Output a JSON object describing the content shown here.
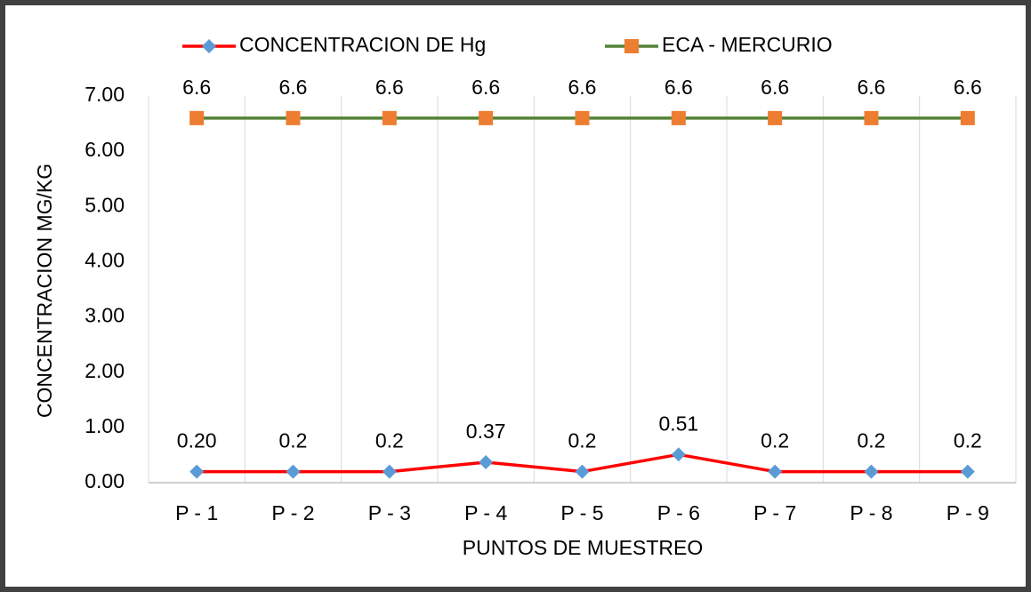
{
  "chart_data": {
    "type": "line",
    "x_label": "PUNTOS DE MUESTREO",
    "y_label": "CONCENTRACION MG/KG",
    "categories": [
      "P - 1",
      "P - 2",
      "P - 3",
      "P - 4",
      "P - 5",
      "P - 6",
      "P - 7",
      "P - 8",
      "P - 9"
    ],
    "series": [
      {
        "name": "CONCENTRACION DE Hg",
        "color": "#ff0000",
        "marker_color": "#5b9bd5",
        "marker": "diamond",
        "values": [
          0.2,
          0.2,
          0.2,
          0.37,
          0.2,
          0.51,
          0.2,
          0.2,
          0.2
        ],
        "value_labels": [
          "0.20",
          "0.2",
          "0.2",
          "0.37",
          "0.2",
          "0.51",
          "0.2",
          "0.2",
          "0.2"
        ]
      },
      {
        "name": "ECA - MERCURIO",
        "color": "#548235",
        "marker_color": "#ed7d31",
        "marker": "square",
        "values": [
          6.6,
          6.6,
          6.6,
          6.6,
          6.6,
          6.6,
          6.6,
          6.6,
          6.6
        ]
      }
    ],
    "ylim": [
      0,
      7
    ],
    "yticks": [
      {
        "value": 0,
        "label": "0.00"
      },
      {
        "value": 1,
        "label": "1.00"
      },
      {
        "value": 2,
        "label": "2.00"
      },
      {
        "value": 3,
        "label": "3.00"
      },
      {
        "value": 4,
        "label": "4.00"
      },
      {
        "value": 5,
        "label": "5.00"
      },
      {
        "value": 6,
        "label": "6.00"
      },
      {
        "value": 7,
        "label": "7.00"
      }
    ],
    "legend": "top"
  }
}
